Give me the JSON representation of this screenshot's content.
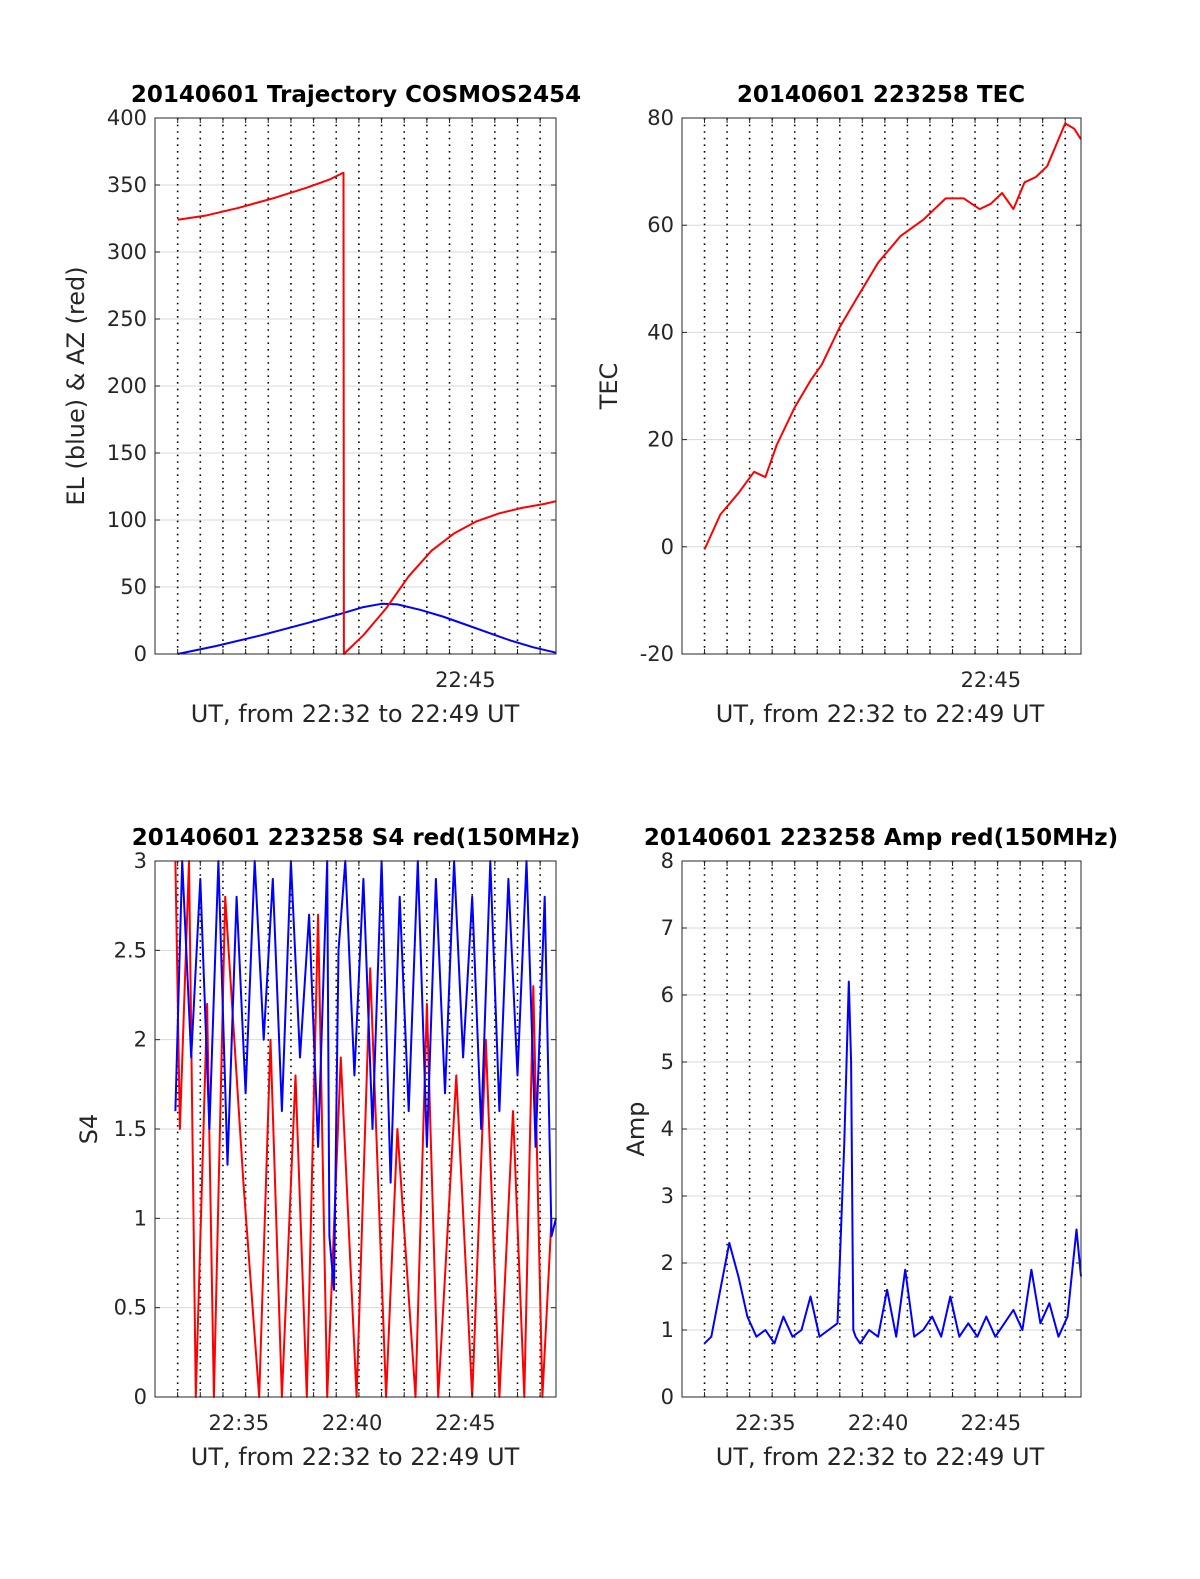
{
  "figure": {
    "colors": {
      "red": "#ff0000",
      "blue": "#0000ff",
      "grid": "#d9d9d9",
      "axis": "#262626"
    }
  },
  "chart_data": [
    {
      "id": "traj",
      "type": "line",
      "title": "20140601 Trajectory COSMOS2454",
      "xlabel": "UT, from 22:32 to 22:49 UT",
      "ylabel": "EL (blue) & AZ (red)",
      "xlim_minutes": [
        31.3,
        49.0
      ],
      "ylim": [
        0,
        400
      ],
      "yticks": [
        0,
        50,
        100,
        150,
        200,
        250,
        300,
        350,
        400
      ],
      "xticks": [
        {
          "value": 45,
          "label": "22:45"
        }
      ],
      "xgrid_minutes": [
        32.3,
        33.3,
        34.3,
        35.3,
        36.3,
        37.3,
        38.3,
        39.3,
        40.3,
        41.3,
        42.3,
        43.3,
        44.3,
        45.3,
        46.3,
        47.3,
        48.3
      ],
      "grid": true,
      "series": [
        {
          "name": "EL",
          "color": "#0000ff",
          "x": [
            32.3,
            34,
            36,
            38,
            39.5,
            40.5,
            41.3,
            42,
            43,
            44,
            45,
            46,
            47,
            48,
            49
          ],
          "y": [
            0,
            6,
            14,
            23,
            30,
            35,
            37.5,
            37,
            33,
            28,
            22,
            16,
            10,
            5,
            1
          ]
        },
        {
          "name": "AZ",
          "color": "#ff0000",
          "x": [
            32.3,
            33.5,
            35,
            36.5,
            38,
            39,
            39.6,
            39.62,
            39.64,
            40.5,
            41.5,
            42.5,
            43.5,
            44.5,
            45.5,
            46.5,
            47.5,
            48.5,
            49
          ],
          "y": [
            324,
            327,
            333,
            340,
            348,
            354,
            359,
            359,
            0,
            14,
            34,
            58,
            77,
            90,
            99,
            105,
            109,
            112,
            114
          ]
        }
      ]
    },
    {
      "id": "tec",
      "type": "line",
      "title": "20140601 223258 TEC",
      "xlabel": "UT, from 22:32 to 22:49 UT",
      "ylabel": "TEC",
      "xlim_minutes": [
        31.3,
        49.0
      ],
      "ylim": [
        -20,
        80
      ],
      "yticks": [
        -20,
        0,
        20,
        40,
        60,
        80
      ],
      "xticks": [
        {
          "value": 45,
          "label": "22:45"
        }
      ],
      "xgrid_minutes": [
        32.3,
        33.3,
        34.3,
        35.3,
        36.3,
        37.3,
        38.3,
        39.3,
        40.3,
        41.3,
        42.3,
        43.3,
        44.3,
        45.3,
        46.3,
        47.3,
        48.3
      ],
      "grid": true,
      "series": [
        {
          "name": "TEC",
          "color": "#ff0000",
          "x": [
            32.3,
            33,
            33.8,
            34.5,
            35,
            35.5,
            36.3,
            37,
            37.5,
            38.3,
            39,
            40,
            41,
            42,
            43,
            43.8,
            44.5,
            45,
            45.5,
            46,
            46.5,
            47,
            47.5,
            48,
            48.3,
            48.7,
            49
          ],
          "y": [
            -0.5,
            6,
            10,
            14,
            13,
            19,
            26,
            31,
            34,
            41,
            46,
            53,
            58,
            61,
            65,
            65,
            63,
            64,
            66,
            63,
            68,
            69,
            71,
            76,
            79,
            78,
            76
          ]
        }
      ]
    },
    {
      "id": "s4",
      "type": "line",
      "title": "20140601 223258 S4 red(150MHz)",
      "xlabel": "UT, from 22:32 to 22:49 UT",
      "ylabel": "S4",
      "xlim_minutes": [
        31.3,
        49.0
      ],
      "ylim": [
        0,
        3
      ],
      "yticks": [
        0,
        0.5,
        1,
        1.5,
        2,
        2.5,
        3
      ],
      "xticks": [
        {
          "value": 35,
          "label": "22:35"
        },
        {
          "value": 40,
          "label": "22:40"
        },
        {
          "value": 45,
          "label": "22:45"
        }
      ],
      "xgrid_minutes": [
        32.3,
        33.3,
        34.3,
        35.3,
        36.3,
        37.3,
        38.3,
        39.3,
        40.3,
        41.3,
        42.3,
        43.3,
        44.3,
        45.3,
        46.3,
        47.3,
        48.3
      ],
      "grid": true,
      "series": [
        {
          "name": "red",
          "color": "#ff0000",
          "x": [
            32.2,
            32.4,
            32.8,
            33.1,
            33.6,
            33.9,
            34.4,
            35.2,
            35.9,
            36.4,
            36.9,
            37.5,
            38.0,
            38.5,
            38.9,
            39.5,
            40.2,
            40.8,
            41.5,
            42.0,
            42.8,
            43.3,
            43.8,
            44.6,
            45.3,
            45.9,
            46.5,
            47.1,
            47.6,
            48.0,
            48.4,
            48.8
          ],
          "y": [
            3,
            1.5,
            3,
            0,
            2.2,
            0,
            2.8,
            1.2,
            0,
            2.0,
            0,
            1.8,
            0,
            2.7,
            0,
            1.9,
            0,
            2.4,
            0,
            1.5,
            0,
            2.2,
            0,
            1.8,
            0,
            2.0,
            0,
            1.6,
            0,
            2.3,
            0,
            1.0
          ]
        },
        {
          "name": "blue",
          "color": "#0000ff",
          "x": [
            32.2,
            32.5,
            32.9,
            33.3,
            33.7,
            34.1,
            34.5,
            34.9,
            35.3,
            35.7,
            36.1,
            36.5,
            36.9,
            37.3,
            37.7,
            38.1,
            38.5,
            38.9,
            39.0,
            39.2,
            39.4,
            39.7,
            40.1,
            40.5,
            40.9,
            41.3,
            41.7,
            42.1,
            42.5,
            42.9,
            43.3,
            43.7,
            44.1,
            44.5,
            44.9,
            45.3,
            45.7,
            46.1,
            46.5,
            46.9,
            47.3,
            47.7,
            48.1,
            48.5,
            48.8,
            49.0
          ],
          "y": [
            1.6,
            3,
            1.9,
            2.9,
            1.5,
            3,
            1.3,
            2.8,
            1.7,
            3,
            2.0,
            2.9,
            1.6,
            3,
            1.9,
            2.7,
            1.4,
            3,
            0.9,
            0.6,
            2.5,
            3,
            1.8,
            2.9,
            1.5,
            3,
            1.2,
            2.8,
            1.6,
            3,
            1.4,
            2.9,
            1.7,
            3,
            1.9,
            2.8,
            1.5,
            3,
            1.6,
            2.9,
            1.8,
            3,
            1.4,
            2.8,
            0.9,
            1.0
          ]
        }
      ]
    },
    {
      "id": "amp",
      "type": "line",
      "title": "20140601 223258 Amp red(150MHz)",
      "xlabel": "UT, from 22:32 to 22:49 UT",
      "ylabel": "Amp",
      "xlim_minutes": [
        31.3,
        49.0
      ],
      "ylim": [
        0,
        8
      ],
      "yticks": [
        0,
        1,
        2,
        3,
        4,
        5,
        6,
        7,
        8
      ],
      "xticks": [
        {
          "value": 35,
          "label": "22:35"
        },
        {
          "value": 40,
          "label": "22:40"
        },
        {
          "value": 45,
          "label": "22:45"
        }
      ],
      "xgrid_minutes": [
        32.3,
        33.3,
        34.3,
        35.3,
        36.3,
        37.3,
        38.3,
        39.3,
        40.3,
        41.3,
        42.3,
        43.3,
        44.3,
        45.3,
        46.3,
        47.3,
        48.3
      ],
      "grid": true,
      "series": [
        {
          "name": "Amp",
          "color": "#0000ff",
          "x": [
            32.3,
            32.6,
            33,
            33.4,
            33.8,
            34.2,
            34.6,
            35,
            35.4,
            35.8,
            36.2,
            36.6,
            37,
            37.4,
            37.8,
            38.2,
            38.5,
            38.7,
            38.8,
            38.9,
            39.0,
            39.2,
            39.6,
            40,
            40.4,
            40.8,
            41.2,
            41.6,
            42,
            42.4,
            42.8,
            43.2,
            43.6,
            44,
            44.4,
            44.8,
            45.2,
            45.6,
            46,
            46.4,
            46.8,
            47.2,
            47.6,
            48,
            48.4,
            48.8,
            49.0
          ],
          "y": [
            0.8,
            0.9,
            1.6,
            2.3,
            1.8,
            1.2,
            0.9,
            1.0,
            0.8,
            1.2,
            0.9,
            1.0,
            1.5,
            0.9,
            1.0,
            1.1,
            3.8,
            6.2,
            5.0,
            1.0,
            0.9,
            0.8,
            1.0,
            0.9,
            1.6,
            0.9,
            1.9,
            0.9,
            1.0,
            1.2,
            0.9,
            1.5,
            0.9,
            1.1,
            0.9,
            1.2,
            0.9,
            1.1,
            1.3,
            1.0,
            1.9,
            1.1,
            1.4,
            0.9,
            1.2,
            2.5,
            1.8
          ]
        }
      ]
    }
  ]
}
